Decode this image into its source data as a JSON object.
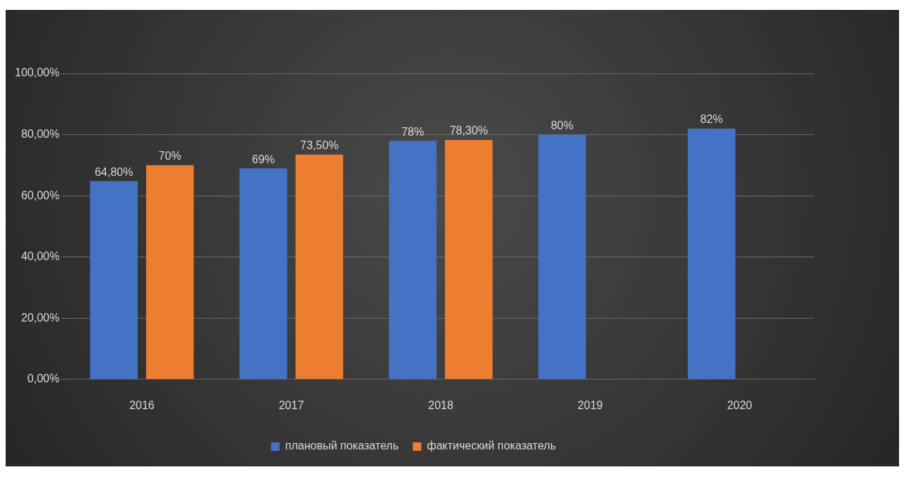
{
  "chart_data": {
    "type": "bar",
    "categories": [
      "2016",
      "2017",
      "2018",
      "2019",
      "2020"
    ],
    "series": [
      {
        "name": "плановый показатель",
        "color": "#4472c4",
        "values": [
          64.8,
          69,
          78,
          80,
          82
        ],
        "value_labels": [
          "64,80%",
          "69%",
          "78%",
          "80%",
          "82%"
        ]
      },
      {
        "name": "фактический показатель",
        "color": "#ed7d31",
        "values": [
          70,
          73.5,
          78.3,
          null,
          null
        ],
        "value_labels": [
          "70%",
          "73,50%",
          "78,30%",
          null,
          null
        ]
      }
    ],
    "ylim": [
      0,
      100
    ],
    "yticks": [
      {
        "value": 0,
        "label": "0,00%"
      },
      {
        "value": 20,
        "label": "20,00%"
      },
      {
        "value": 40,
        "label": "40,00%"
      },
      {
        "value": 60,
        "label": "60,00%"
      },
      {
        "value": 80,
        "label": "80,00%"
      },
      {
        "value": 100,
        "label": "100,00%"
      }
    ],
    "grid": "y",
    "legend": "bottom"
  }
}
